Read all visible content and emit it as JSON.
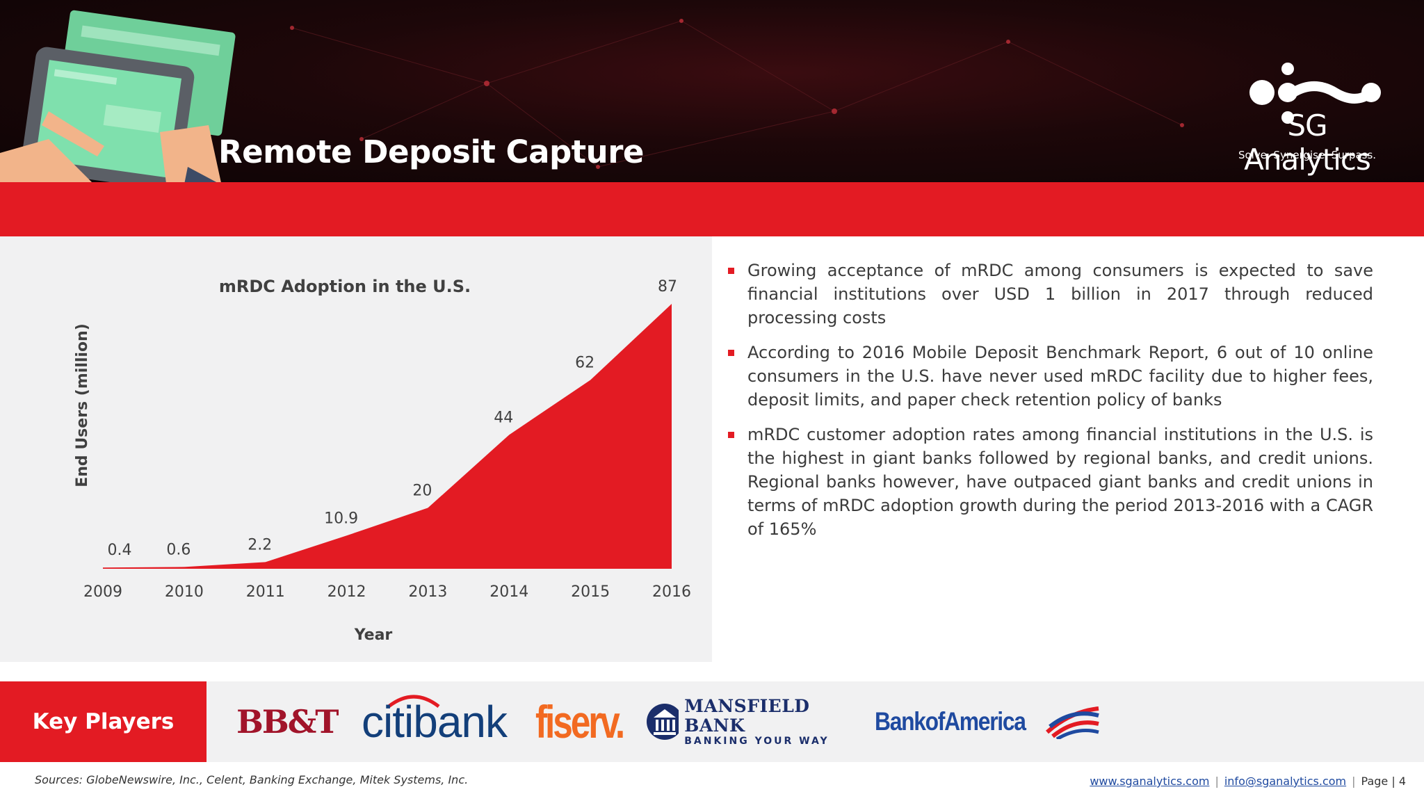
{
  "header": {
    "title": "Remote Deposit Capture",
    "logo_name": "SG Analytics",
    "logo_tagline": "Solve. Synergise. Surpass."
  },
  "chart_data": {
    "type": "area",
    "title": "mRDC Adoption in the U.S.",
    "xlabel": "Year",
    "ylabel": "End Users (million)",
    "categories": [
      "2009",
      "2010",
      "2011",
      "2012",
      "2013",
      "2014",
      "2015",
      "2016"
    ],
    "values": [
      0.4,
      0.6,
      2.2,
      10.9,
      20,
      44,
      62,
      87
    ],
    "data_labels": [
      "0.4",
      "0.6",
      "2.2",
      "10.9",
      "20",
      "44",
      "62",
      "87"
    ],
    "ylim": [
      0,
      95
    ],
    "grid": false,
    "legend": "none",
    "color": "#e31b23"
  },
  "bullets": [
    "Growing acceptance of mRDC among consumers is expected to save financial institutions over USD 1 billion in 2017 through reduced  processing costs",
    "According to 2016 Mobile Deposit Benchmark Report, 6 out of 10 online consumers in the U.S. have never used mRDC facility due to higher fees, deposit limits, and paper check retention policy of banks",
    "mRDC customer adoption rates among financial institutions in the U.S. is the highest in giant banks followed by regional banks, and credit unions. Regional banks however, have outpaced giant banks and credit unions in terms of mRDC adoption growth during the period 2013-2016 with a CAGR of 165%"
  ],
  "key_players": {
    "label": "Key Players",
    "bbt": "BB&T",
    "citi_a": "citi",
    "citi_b": "bank",
    "fiserv": "fiserv.",
    "mansfield_name": "MANSFIELD BANK",
    "mansfield_sub": "BANKING YOUR WAY",
    "boa": "BankofAmerica"
  },
  "footer": {
    "sources": "Sources: GlobeNewswire, Inc., Celent, Banking Exchange, Mitek Systems, Inc.",
    "website": "www.sganalytics.com",
    "email": "info@sganalytics.com",
    "page": "Page | 4"
  }
}
